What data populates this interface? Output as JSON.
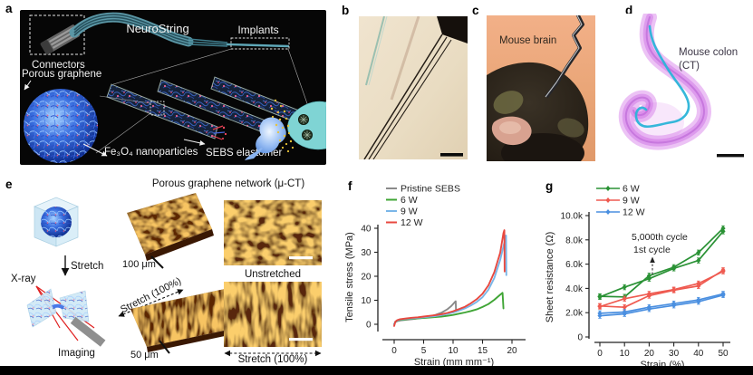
{
  "panels": {
    "a": {
      "label": "a",
      "neurostring": "NeuroString",
      "implants": "Implants",
      "connectors": "Connectors",
      "porous_graphene": "Porous graphene",
      "nanoparticles": "Fe₃O₄ nanoparticles",
      "elastomer": "SEBS elastomer"
    },
    "b": {
      "label": "b"
    },
    "c": {
      "label": "c",
      "caption": "Mouse brain"
    },
    "d": {
      "label": "d",
      "caption_line1": "Mouse colon",
      "caption_line2": "(CT)"
    },
    "e": {
      "label": "e",
      "title": "Porous graphene network (μ-CT)",
      "stretch": "Stretch",
      "xray": "X-ray",
      "imaging": "Imaging",
      "scale_100um": "100 μm",
      "scale_50um": "50 μm",
      "stretch_100_rotated": "Stretch (100%)",
      "unstretched": "Unstretched",
      "stretch_100_bottom": "Stretch (100%)"
    },
    "f": {
      "label": "f"
    },
    "g": {
      "label": "g"
    }
  },
  "chart_data": [
    {
      "type": "line",
      "title": "",
      "xlabel": "Strain (mm mm⁻¹)",
      "ylabel": "Tensile stress (MPa)",
      "xlim": [
        0,
        20
      ],
      "ylim": [
        0,
        40
      ],
      "xticks": [
        0,
        5,
        10,
        15,
        20
      ],
      "yticks": [
        0,
        10,
        20,
        30,
        40
      ],
      "legend_position": "top-left-inside",
      "grid": false,
      "series": [
        {
          "name": "Pristine SEBS",
          "color": "#8a8a8a",
          "points": [
            [
              0,
              0
            ],
            [
              0.2,
              0.9
            ],
            [
              0.5,
              1.3
            ],
            [
              1,
              1.6
            ],
            [
              2,
              1.9
            ],
            [
              3,
              2.1
            ],
            [
              4,
              2.4
            ],
            [
              5,
              2.7
            ],
            [
              6,
              3.2
            ],
            [
              7,
              3.9
            ],
            [
              8,
              4.8
            ],
            [
              9,
              6.2
            ],
            [
              9.7,
              7.6
            ],
            [
              10.2,
              9.0
            ],
            [
              10.45,
              9.6
            ],
            [
              10.5,
              5.3
            ]
          ]
        },
        {
          "name": "6 W",
          "color": "#3fa535",
          "points": [
            [
              0,
              0
            ],
            [
              0.2,
              1.0
            ],
            [
              0.5,
              1.5
            ],
            [
              1,
              1.8
            ],
            [
              2,
              2.1
            ],
            [
              3,
              2.3
            ],
            [
              4,
              2.5
            ],
            [
              5,
              2.6
            ],
            [
              6,
              2.8
            ],
            [
              7,
              3.0
            ],
            [
              8,
              3.2
            ],
            [
              9,
              3.5
            ],
            [
              10,
              3.9
            ],
            [
              11,
              4.4
            ],
            [
              12,
              4.9
            ],
            [
              13,
              5.5
            ],
            [
              14,
              6.2
            ],
            [
              15,
              7.2
            ],
            [
              16,
              8.4
            ],
            [
              17,
              10.2
            ],
            [
              18,
              12.3
            ],
            [
              18.4,
              13.1
            ],
            [
              18.55,
              6.6
            ]
          ]
        },
        {
          "name": "9 W",
          "color": "#7ab6e8",
          "points": [
            [
              0,
              0
            ],
            [
              0.2,
              1.1
            ],
            [
              0.5,
              1.6
            ],
            [
              1,
              2.0
            ],
            [
              2,
              2.3
            ],
            [
              3,
              2.5
            ],
            [
              4,
              2.7
            ],
            [
              5,
              2.9
            ],
            [
              6,
              3.2
            ],
            [
              7,
              3.4
            ],
            [
              8,
              3.8
            ],
            [
              9,
              4.3
            ],
            [
              10,
              4.9
            ],
            [
              11,
              5.7
            ],
            [
              12,
              6.6
            ],
            [
              13,
              7.8
            ],
            [
              14,
              9.3
            ],
            [
              15,
              11.3
            ],
            [
              16,
              14.4
            ],
            [
              17,
              19.3
            ],
            [
              18,
              26.8
            ],
            [
              18.6,
              33.0
            ],
            [
              19.0,
              37.0
            ],
            [
              19.05,
              20.5
            ]
          ]
        },
        {
          "name": "12 W",
          "color": "#e8483f",
          "points": [
            [
              0,
              -0.7
            ],
            [
              0.2,
              1.1
            ],
            [
              0.5,
              1.7
            ],
            [
              1,
              2.1
            ],
            [
              2,
              2.4
            ],
            [
              3,
              2.7
            ],
            [
              4,
              2.9
            ],
            [
              5,
              3.2
            ],
            [
              6,
              3.5
            ],
            [
              7,
              3.8
            ],
            [
              8,
              4.2
            ],
            [
              9,
              4.7
            ],
            [
              10,
              5.4
            ],
            [
              11,
              6.3
            ],
            [
              12,
              7.3
            ],
            [
              13,
              8.7
            ],
            [
              14,
              10.4
            ],
            [
              15,
              12.7
            ],
            [
              16,
              16.2
            ],
            [
              17,
              21.7
            ],
            [
              18,
              29.8
            ],
            [
              18.55,
              38.0
            ],
            [
              18.7,
              39.2
            ],
            [
              18.75,
              22.0
            ]
          ]
        }
      ]
    },
    {
      "type": "line",
      "title": "",
      "xlabel": "Strain (%)",
      "ylabel": "Sheet resistance (Ω)",
      "xlim": [
        0,
        50
      ],
      "ylim": [
        0,
        10000
      ],
      "xticks": [
        0,
        10,
        20,
        30,
        40,
        50
      ],
      "yticks": [
        0,
        2000,
        4000,
        6000,
        8000,
        10000
      ],
      "ytick_labels": [
        "0",
        "2.0k",
        "4.0k",
        "6.0k",
        "8.0k",
        "10.0k"
      ],
      "legend_position": "top-left-inside",
      "grid": false,
      "marker": "diamond",
      "annotations": [
        {
          "text": "5,000th cycle"
        },
        {
          "text": "1st cycle"
        }
      ],
      "series": [
        {
          "name": "6 W",
          "color": "#2a9235",
          "lines": [
            [
              [
                0,
                3300
              ],
              [
                10,
                4100
              ],
              [
                20,
                4800
              ],
              [
                30,
                5650
              ],
              [
                40,
                6300
              ],
              [
                50,
                8700
              ]
            ],
            [
              [
                0,
                3350
              ],
              [
                10,
                3300
              ],
              [
                20,
                5050
              ],
              [
                30,
                5750
              ],
              [
                40,
                6950
              ],
              [
                50,
                8950
              ]
            ]
          ]
        },
        {
          "name": "9 W",
          "color": "#ef5a50",
          "lines": [
            [
              [
                0,
                2500
              ],
              [
                10,
                3150
              ],
              [
                20,
                3550
              ],
              [
                30,
                3900
              ],
              [
                40,
                4400
              ],
              [
                50,
                5400
              ]
            ],
            [
              [
                0,
                2550
              ],
              [
                10,
                2450
              ],
              [
                20,
                3400
              ],
              [
                30,
                3850
              ],
              [
                40,
                4200
              ],
              [
                50,
                5500
              ]
            ]
          ]
        },
        {
          "name": "12 W",
          "color": "#4a8fe0",
          "lines": [
            [
              [
                0,
                1750
              ],
              [
                10,
                1900
              ],
              [
                20,
                2300
              ],
              [
                30,
                2600
              ],
              [
                40,
                2900
              ],
              [
                50,
                3450
              ]
            ],
            [
              [
                0,
                1950
              ],
              [
                10,
                2050
              ],
              [
                20,
                2450
              ],
              [
                30,
                2750
              ],
              [
                40,
                3050
              ],
              [
                50,
                3550
              ]
            ]
          ]
        }
      ]
    }
  ]
}
